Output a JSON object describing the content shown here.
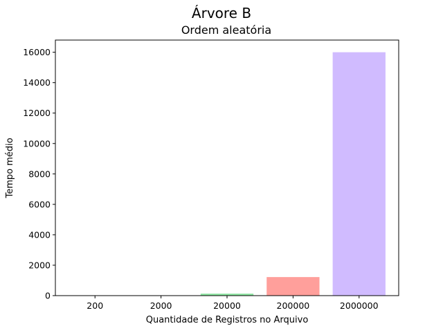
{
  "chart_data": {
    "type": "bar",
    "title": "Árvore B",
    "subtitle": "Ordem aleatória",
    "xlabel": "Quantidade de Registros no Arquivo",
    "ylabel": "Tempo médio",
    "categories": [
      "200",
      "2000",
      "20000",
      "200000",
      "2000000"
    ],
    "values": [
      2,
      15,
      130,
      1220,
      16000
    ],
    "colors": [
      "#a1c9f4",
      "#ffb482",
      "#8de5a1",
      "#ff9f9b",
      "#d0bbff"
    ],
    "ylim": [
      0,
      16800
    ],
    "yticks": [
      0,
      2000,
      4000,
      6000,
      8000,
      10000,
      12000,
      14000,
      16000
    ],
    "grid": false,
    "legend": "none"
  }
}
